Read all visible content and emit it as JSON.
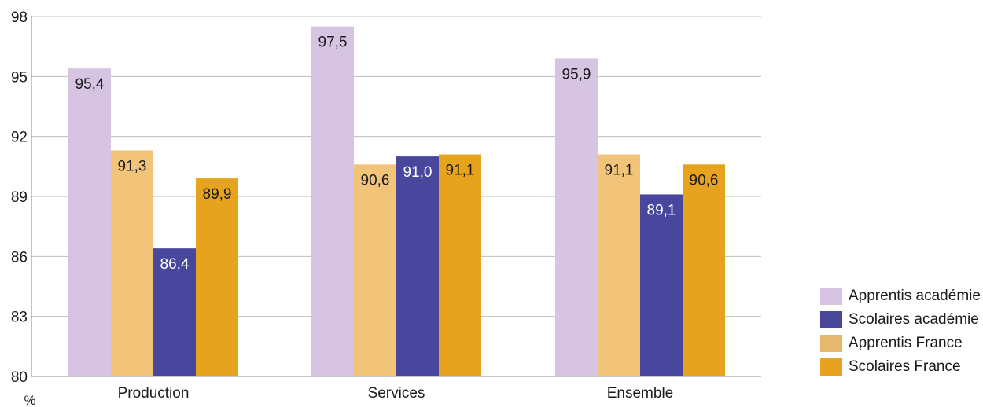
{
  "chart_data": {
    "type": "bar",
    "categories": [
      "Production",
      "Services",
      "Ensemble"
    ],
    "series": [
      {
        "name": "Apprentis académie",
        "values": [
          95.4,
          97.5,
          95.9
        ],
        "color": "#d6c4e2",
        "label_color": "#1a1a1a"
      },
      {
        "name": "Apprentis France",
        "values": [
          91.3,
          90.6,
          91.1
        ],
        "color": "#f1c47a",
        "label_color": "#1a1a1a"
      },
      {
        "name": "Scolaires académie",
        "values": [
          86.4,
          91.0,
          89.1
        ],
        "color": "#48479d",
        "label_color": "#ffffff"
      },
      {
        "name": "Scolaires France",
        "values": [
          89.9,
          91.1,
          90.6
        ],
        "color": "#e6a31e",
        "label_color": "#1a1a1a"
      }
    ],
    "data_labels": [
      [
        "95,4",
        "97,5",
        "95,9"
      ],
      [
        "91,3",
        "90,6",
        "91,1"
      ],
      [
        "86,4",
        "91,0",
        "89,1"
      ],
      [
        "89,9",
        "91,1",
        "90,6"
      ]
    ],
    "ylim": [
      80,
      98
    ],
    "yticks": [
      80,
      83,
      86,
      89,
      92,
      95,
      98
    ],
    "ylabel": "%",
    "xlabel": "",
    "title": "",
    "grid": true,
    "legend_position": "right",
    "legend": [
      {
        "label": "Apprentis académie",
        "color": "#d6c4e2"
      },
      {
        "label": "Scolaires académie",
        "color": "#48479d"
      },
      {
        "label": "Apprentis France",
        "color": "#e4b86e"
      },
      {
        "label": "Scolaires France",
        "color": "#e6a31e"
      }
    ]
  }
}
